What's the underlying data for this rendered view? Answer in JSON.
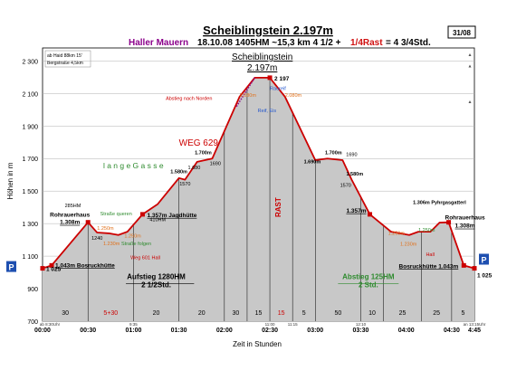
{
  "header": {
    "title": "Scheiblingstein 2.197m",
    "subtitle_left": "Haller Mauern",
    "subtitle_main": "18.10.08   1405HM   ~15,3 km   4 1/2 +",
    "subtitle_rast": "1/4Rast",
    "subtitle_end": "= 4 3/4Std.",
    "page_badge": "31/08"
  },
  "info_box": [
    "ab Haid 88km 15'",
    "Bergstraße 4,5km"
  ],
  "colors": {
    "profile": "#cc0000",
    "fill": "#c8c8c8",
    "title_purple": "#8b008b",
    "green": "#2e8b2e",
    "orange": "#e0701a",
    "blue": "#2255cc",
    "black": "#000000"
  },
  "chart_data": {
    "type": "area",
    "xlabel": "Zeit in Stunden",
    "ylabel": "Höhen in m",
    "ylim": [
      700,
      2380
    ],
    "xlim": [
      0,
      285
    ],
    "y_ticks": [
      700,
      900,
      1100,
      1300,
      1500,
      1700,
      1900,
      2100,
      2300
    ],
    "y_tick_labels": [
      "700",
      "900",
      "1 100",
      "1 300",
      "1 500",
      "1 700",
      "1 900",
      "2 100",
      "2 300"
    ],
    "x_ticks": [
      0,
      30,
      60,
      90,
      120,
      150,
      180,
      210,
      240,
      270,
      285
    ],
    "x_tick_labels": [
      "00:00",
      "00:30",
      "01:00",
      "01:30",
      "02:00",
      "02:30",
      "03:00",
      "03:30",
      "04:00",
      "04:30",
      "4:45"
    ],
    "series": [
      {
        "x": [
          0,
          6,
          30,
          36,
          44,
          50,
          56,
          66,
          76,
          90,
          94,
          102,
          112,
          130,
          140,
          150,
          160,
          180,
          188,
          198,
          204,
          216,
          230,
          242,
          248,
          256,
          262,
          268,
          278,
          285
        ],
        "y": [
          1025,
          1043,
          1308,
          1245,
          1240,
          1230,
          1250,
          1357,
          1420,
          1580,
          1570,
          1680,
          1700,
          2080,
          2197,
          2197,
          2080,
          1690,
          1700,
          1690,
          1570,
          1357,
          1250,
          1230,
          1250,
          1250,
          1306,
          1308,
          1043,
          1025
        ]
      }
    ],
    "peak_marker": {
      "x": 150,
      "y": 2197,
      "label": "2 197"
    },
    "points": [
      {
        "x": 0,
        "y": 1025,
        "label": "1 025"
      },
      {
        "x": 6,
        "y": 1043,
        "label": "1.043m Bosruckhütte"
      },
      {
        "x": 30,
        "y": 1308,
        "label": "Rohrauerhaus 1.308m"
      },
      {
        "x": 66,
        "y": 1357,
        "label": "1.357m Jagdhütte"
      },
      {
        "x": 216,
        "y": 1357,
        "label": "1.357m"
      },
      {
        "x": 268,
        "y": 1308,
        "label": "Rohrauerhaus 1.308m"
      },
      {
        "x": 278,
        "y": 1043,
        "label": "Bosruckhütte 1.043m"
      },
      {
        "x": 285,
        "y": 1025,
        "label": "1 025"
      }
    ],
    "segment_minutes": [
      {
        "from": 0,
        "to": 30,
        "label": "30"
      },
      {
        "from": 30,
        "to": 60,
        "label": "5+30"
      },
      {
        "from": 60,
        "to": 90,
        "label": "20"
      },
      {
        "from": 90,
        "to": 120,
        "label": "20"
      },
      {
        "from": 120,
        "to": 135,
        "label": "30"
      },
      {
        "from": 135,
        "to": 150,
        "label": "15"
      },
      {
        "from": 150,
        "to": 165,
        "label": "15"
      },
      {
        "from": 165,
        "to": 180,
        "label": "5"
      },
      {
        "from": 180,
        "to": 210,
        "label": "50"
      },
      {
        "from": 210,
        "to": 225,
        "label": "10"
      },
      {
        "from": 225,
        "to": 250,
        "label": "25"
      },
      {
        "from": 250,
        "to": 270,
        "label": "25"
      },
      {
        "from": 270,
        "to": 285,
        "label": "5"
      }
    ],
    "annotations": [
      {
        "x": 130,
        "y": 2080,
        "text": "2.080m",
        "color": "orange"
      },
      {
        "x": 160,
        "y": 2080,
        "text": "2.080m",
        "color": "orange"
      },
      {
        "x": 112,
        "y": 2060,
        "text": "Abstieg nach Norden",
        "color": "red"
      },
      {
        "x": 150,
        "y": 2120,
        "text": "Raureif",
        "color": "blue"
      },
      {
        "x": 142,
        "y": 1985,
        "text": "Reif, Eis",
        "color": "blue"
      },
      {
        "x": 90,
        "y": 1780,
        "text": "WEG 629",
        "color": "red"
      },
      {
        "x": 40,
        "y": 1640,
        "text": "l a n g e   G a s s e",
        "color": "green"
      },
      {
        "x": 38,
        "y": 1350,
        "text": "Straße queren",
        "color": "green"
      },
      {
        "x": 36,
        "y": 1262,
        "text": "1.250m",
        "color": "orange"
      },
      {
        "x": 40,
        "y": 1168,
        "text": "1.230m",
        "color": "orange"
      },
      {
        "x": 52,
        "y": 1168,
        "text": "Straße folgen",
        "color": "green"
      },
      {
        "x": 54,
        "y": 1215,
        "text": "1.250m",
        "color": "orange"
      },
      {
        "x": 58,
        "y": 1082,
        "text": "Weg 601 Hall",
        "color": "red"
      },
      {
        "x": 228,
        "y": 1230,
        "text": "1.250m",
        "color": "orange"
      },
      {
        "x": 236,
        "y": 1165,
        "text": "1.230m",
        "color": "orange"
      },
      {
        "x": 248,
        "y": 1250,
        "text": "1.250m",
        "color": "green"
      },
      {
        "x": 253,
        "y": 1100,
        "text": "Hall",
        "color": "red"
      }
    ],
    "altitude_labels": [
      {
        "x": 20,
        "y": 1400,
        "text": "285HM"
      },
      {
        "x": 36,
        "y": 1200,
        "text": "1240"
      },
      {
        "x": 90,
        "y": 1610,
        "text": "1.580m"
      },
      {
        "x": 94,
        "y": 1535,
        "text": "1570"
      },
      {
        "x": 100,
        "y": 1635,
        "text": "1.680"
      },
      {
        "x": 106,
        "y": 1725,
        "text": "1.700m"
      },
      {
        "x": 114,
        "y": 1660,
        "text": "1690"
      },
      {
        "x": 76,
        "y": 1315,
        "text": "410HM"
      },
      {
        "x": 178,
        "y": 1670,
        "text": "1.690m"
      },
      {
        "x": 192,
        "y": 1725,
        "text": "1.700m"
      },
      {
        "x": 204,
        "y": 1715,
        "text": "1690"
      },
      {
        "x": 206,
        "y": 1595,
        "text": "1.580m"
      },
      {
        "x": 200,
        "y": 1525,
        "text": "1570"
      },
      {
        "x": 262,
        "y": 1420,
        "text": "1.306m Pyhrgasgatterl"
      }
    ],
    "rast_label": "RAST",
    "summit_label_line1": "Scheiblingstein",
    "summit_label_line2": "2.197m",
    "aufstieg": [
      "Aufstieg 1280HM",
      "2 1/2Std."
    ],
    "abstieg": [
      "Abstieg 125HM",
      "2 Std."
    ],
    "time_marks": [
      {
        "x": 0,
        "text": "ab 8:30Uhr"
      },
      {
        "x": 60,
        "text": "9:35"
      },
      {
        "x": 150,
        "text": "11:00"
      },
      {
        "x": 165,
        "text": "11:15"
      },
      {
        "x": 210,
        "text": "12:10"
      },
      {
        "x": 285,
        "text": "an 13:15Uhr"
      }
    ],
    "parking": "P"
  }
}
